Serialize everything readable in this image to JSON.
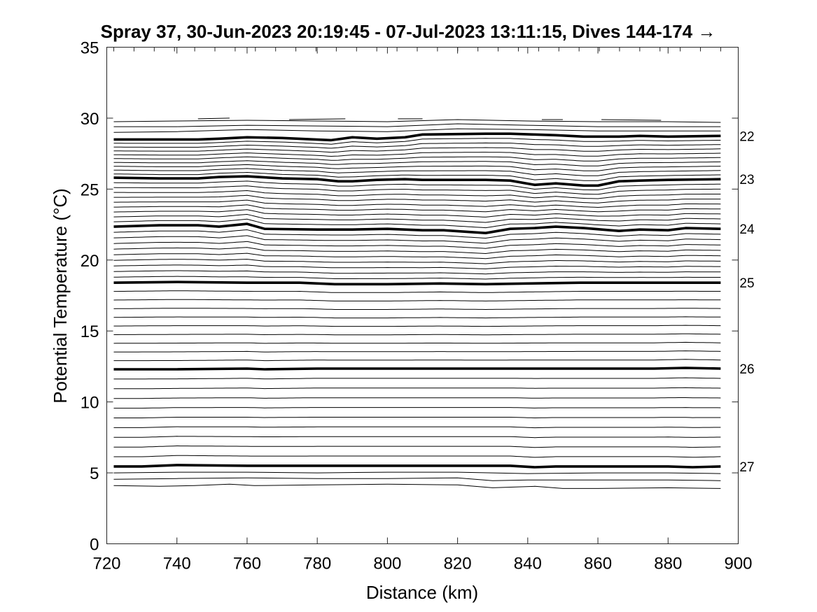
{
  "chart_data": {
    "type": "line",
    "title": "Spray 37, 30-Jun-2023 20:19:45 - 07-Jul-2023 13:11:15, Dives 144-174 →",
    "xlabel": "Distance (km)",
    "ylabel": "Potential Temperature (°C)",
    "xlim": [
      720,
      900
    ],
    "ylim": [
      0,
      35
    ],
    "xticks": [
      720,
      740,
      760,
      780,
      800,
      820,
      840,
      860,
      880,
      900
    ],
    "yticks": [
      0,
      5,
      10,
      15,
      20,
      25,
      30,
      35
    ],
    "x_extent": [
      722,
      895
    ],
    "grid": false,
    "thin_isolines_between_bold": 9,
    "bold_isolines": [
      {
        "name": "22",
        "x": [
          722,
          735,
          746,
          752,
          760,
          770,
          784,
          790,
          797,
          805,
          810,
          828,
          835,
          842,
          848,
          856,
          866,
          872,
          880,
          895
        ],
        "y": [
          28.5,
          28.5,
          28.5,
          28.55,
          28.65,
          28.6,
          28.45,
          28.65,
          28.55,
          28.65,
          28.85,
          28.9,
          28.9,
          28.85,
          28.8,
          28.7,
          28.7,
          28.75,
          28.7,
          28.75
        ]
      },
      {
        "name": "23",
        "x": [
          722,
          735,
          746,
          752,
          760,
          770,
          780,
          786,
          790,
          797,
          805,
          810,
          828,
          835,
          842,
          848,
          856,
          860,
          866,
          872,
          880,
          895
        ],
        "y": [
          25.8,
          25.75,
          25.75,
          25.85,
          25.9,
          25.75,
          25.7,
          25.55,
          25.55,
          25.65,
          25.7,
          25.65,
          25.65,
          25.6,
          25.3,
          25.4,
          25.25,
          25.25,
          25.55,
          25.6,
          25.65,
          25.7
        ]
      },
      {
        "name": "24",
        "x": [
          722,
          735,
          746,
          752,
          760,
          765,
          780,
          790,
          800,
          810,
          816,
          828,
          835,
          842,
          848,
          856,
          866,
          872,
          880,
          885,
          895
        ],
        "y": [
          22.35,
          22.45,
          22.45,
          22.35,
          22.55,
          22.2,
          22.15,
          22.15,
          22.2,
          22.1,
          22.1,
          21.9,
          22.2,
          22.25,
          22.35,
          22.25,
          22.05,
          22.15,
          22.1,
          22.25,
          22.2
        ]
      },
      {
        "name": "25",
        "x": [
          722,
          740,
          760,
          775,
          785,
          800,
          815,
          828,
          840,
          855,
          870,
          885,
          895
        ],
        "y": [
          18.4,
          18.45,
          18.4,
          18.4,
          18.3,
          18.3,
          18.35,
          18.3,
          18.35,
          18.4,
          18.4,
          18.4,
          18.4
        ]
      },
      {
        "name": "26",
        "x": [
          722,
          740,
          760,
          765,
          780,
          800,
          820,
          840,
          860,
          876,
          885,
          895
        ],
        "y": [
          12.3,
          12.3,
          12.35,
          12.3,
          12.35,
          12.35,
          12.35,
          12.35,
          12.35,
          12.35,
          12.4,
          12.35
        ]
      },
      {
        "name": "27",
        "x": [
          722,
          730,
          740,
          760,
          780,
          800,
          820,
          835,
          842,
          848,
          860,
          880,
          887,
          895
        ],
        "y": [
          5.45,
          5.45,
          5.55,
          5.5,
          5.5,
          5.5,
          5.5,
          5.5,
          5.4,
          5.45,
          5.45,
          5.45,
          5.4,
          5.45
        ]
      }
    ],
    "top_isolines": [
      {
        "x": [
          722,
          740,
          760,
          780,
          800,
          820,
          840,
          860,
          880,
          895
        ],
        "y": [
          29.0,
          29.05,
          29.2,
          29.1,
          29.05,
          29.25,
          29.2,
          29.1,
          29.1,
          29.1
        ]
      },
      {
        "x": [
          722,
          740,
          760,
          780,
          800,
          820,
          840,
          860,
          880,
          895
        ],
        "y": [
          29.4,
          29.4,
          29.5,
          29.45,
          29.4,
          29.6,
          29.5,
          29.4,
          29.4,
          29.4
        ]
      },
      {
        "x": [
          722,
          740,
          760,
          780,
          800,
          820,
          840,
          860,
          880,
          895
        ],
        "y": [
          29.75,
          29.8,
          29.85,
          29.8,
          29.75,
          29.9,
          29.8,
          29.75,
          29.75,
          29.7
        ]
      }
    ],
    "top_fragments": [
      {
        "x": [
          746,
          755
        ],
        "y": [
          29.95,
          30.0
        ]
      },
      {
        "x": [
          772,
          788
        ],
        "y": [
          29.9,
          29.95
        ]
      },
      {
        "x": [
          803,
          810
        ],
        "y": [
          29.95,
          29.95
        ]
      },
      {
        "x": [
          844,
          850
        ],
        "y": [
          29.9,
          29.9
        ]
      },
      {
        "x": [
          861,
          878
        ],
        "y": [
          29.9,
          29.85
        ]
      }
    ],
    "bottom_isolines": [
      {
        "x": [
          722,
          740,
          760,
          780,
          800,
          820,
          840,
          860,
          880,
          895
        ],
        "y": [
          5.0,
          5.05,
          5.05,
          5.0,
          5.05,
          5.05,
          4.95,
          5.0,
          5.0,
          4.95
        ]
      },
      {
        "x": [
          722,
          740,
          760,
          780,
          800,
          820,
          830,
          840,
          860,
          880,
          895
        ],
        "y": [
          4.55,
          4.6,
          4.65,
          4.6,
          4.6,
          4.65,
          4.45,
          4.5,
          4.5,
          4.5,
          4.45
        ]
      },
      {
        "x": [
          722,
          735,
          745,
          755,
          762,
          780,
          800,
          820,
          830,
          842,
          850,
          860,
          880,
          895
        ],
        "y": [
          4.1,
          4.05,
          4.1,
          4.2,
          4.1,
          4.15,
          4.2,
          4.15,
          3.95,
          4.05,
          3.9,
          3.9,
          3.95,
          3.9
        ]
      }
    ]
  }
}
